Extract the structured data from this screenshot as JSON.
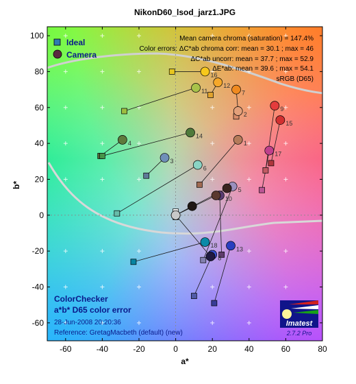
{
  "chart_data": {
    "type": "scatter",
    "title": "NikonD60_lsod_jarz1.JPG",
    "xlabel": "a*",
    "ylabel": "b*",
    "xlim": [
      -70,
      80
    ],
    "ylim": [
      -70,
      105
    ],
    "xticks": [
      -60,
      -40,
      -20,
      0,
      20,
      40,
      60,
      80
    ],
    "yticks": [
      -60,
      -40,
      -20,
      0,
      20,
      40,
      60,
      80,
      100
    ],
    "legend": {
      "position": "top-left",
      "entries": [
        "Ideal",
        "Camera"
      ]
    },
    "info_lines": [
      "Mean camera chroma (saturation) = 147.4%",
      "Color errors:  ΔC*ab chroma corr:  mean = 30.1 ;  max = 46",
      "ΔC*ab uncorr:  mean = 37.7 ;  max = 52.9",
      "ΔE*ab:  mean = 39.6 ;  max = 54.1",
      "sRGB (D65)"
    ],
    "footer": {
      "line1": "ColorChecker",
      "line2": "a*b* D65 color error",
      "date": "28-Jun-2008 20:20:36",
      "reference": "Reference: GretagMacbeth (default) (new)"
    },
    "logo": {
      "text": "Imatest",
      "version": "2.7.2  Pro"
    },
    "series": [
      {
        "name": "Ideal",
        "marker": "square"
      },
      {
        "name": "Camera",
        "marker": "circle"
      }
    ],
    "patches": [
      {
        "id": 1,
        "label": "1",
        "ideal": [
          13,
          17
        ],
        "camera": [
          34,
          42
        ],
        "color": "#b47b5a",
        "ideal_color": "#a06a52"
      },
      {
        "id": 2,
        "label": "2",
        "ideal": [
          33,
          55
        ],
        "camera": [
          34,
          58
        ],
        "color": "#e3a07a",
        "ideal_color": "#d88c6a"
      },
      {
        "id": 3,
        "label": "3",
        "ideal": [
          -16,
          22
        ],
        "camera": [
          -6,
          32
        ],
        "color": "#6f8fb8",
        "ideal_color": "#5e7a98"
      },
      {
        "id": 4,
        "label": "4",
        "ideal": [
          -41,
          33
        ],
        "camera": [
          -29,
          42
        ],
        "color": "#5e7a3c",
        "ideal_color": "#586b3a"
      },
      {
        "id": 5,
        "label": "5",
        "ideal": [
          15,
          -25
        ],
        "camera": [
          31,
          16
        ],
        "color": "#9a8fbd",
        "ideal_color": "#8380af"
      },
      {
        "id": 6,
        "label": "6",
        "ideal": [
          -32,
          1
        ],
        "camera": [
          12,
          28
        ],
        "color": "#8ad4c4",
        "ideal_color": "#67bdaa"
      },
      {
        "id": 7,
        "label": "7",
        "ideal": [
          34,
          58
        ],
        "camera": [
          33,
          70
        ],
        "color": "#f08a20",
        "ideal_color": "#d67e2c"
      },
      {
        "id": 8,
        "label": "8",
        "ideal": [
          10,
          -45
        ],
        "camera": [
          20,
          -22
        ],
        "color": "#3650d0",
        "ideal_color": "#505ba6"
      },
      {
        "id": 9,
        "label": "9",
        "ideal": [
          49,
          25
        ],
        "camera": [
          54,
          61
        ],
        "color": "#e43c3c",
        "ideal_color": "#c15a63"
      },
      {
        "id": 10,
        "label": "10",
        "ideal": [
          25,
          -22
        ],
        "camera": [
          24,
          11
        ],
        "color": "#5a3c72",
        "ideal_color": "#5e3c6c"
      },
      {
        "id": 11,
        "label": "11",
        "ideal": [
          -28,
          58
        ],
        "camera": [
          11,
          71
        ],
        "color": "#a8c24a",
        "ideal_color": "#9dbc40"
      },
      {
        "id": 12,
        "label": "12",
        "ideal": [
          19,
          67
        ],
        "camera": [
          23,
          74
        ],
        "color": "#f5a82a",
        "ideal_color": "#e0a32e"
      },
      {
        "id": 13,
        "label": "13",
        "ideal": [
          21,
          -49
        ],
        "camera": [
          30,
          -17
        ],
        "color": "#2a3ec0",
        "ideal_color": "#383d96"
      },
      {
        "id": 14,
        "label": "14",
        "ideal": [
          -40,
          33
        ],
        "camera": [
          8,
          46
        ],
        "color": "#4f7a3a",
        "ideal_color": "#469449"
      },
      {
        "id": 15,
        "label": "15",
        "ideal": [
          52,
          29
        ],
        "camera": [
          57,
          53
        ],
        "color": "#d23030",
        "ideal_color": "#af363c"
      },
      {
        "id": 16,
        "label": "16",
        "ideal": [
          -2,
          80
        ],
        "camera": [
          16,
          80
        ],
        "color": "#f7c81c",
        "ideal_color": "#e7c71f"
      },
      {
        "id": 17,
        "label": "17",
        "ideal": [
          47,
          14
        ],
        "camera": [
          51,
          36
        ],
        "color": "#c0408c",
        "ideal_color": "#bb5695"
      },
      {
        "id": 18,
        "label": "18",
        "ideal": [
          -23,
          -26
        ],
        "camera": [
          16,
          -15
        ],
        "color": "#0a8aa8",
        "ideal_color": "#0885a1"
      },
      {
        "id": 19,
        "label": "",
        "ideal": [
          0,
          2
        ],
        "camera": [
          0,
          0
        ],
        "color": "#f3f3f2",
        "ideal_color": "#f3f3f2"
      },
      {
        "id": 20,
        "label": "",
        "ideal": [
          0,
          -1
        ],
        "camera": [
          0,
          0
        ],
        "color": "#c8c8c8",
        "ideal_color": "#c8c8c8"
      },
      {
        "id": 21,
        "label": "",
        "ideal": [
          0,
          0
        ],
        "camera": [
          9,
          5
        ],
        "color": "#201814",
        "ideal_color": "#a0a0a0"
      },
      {
        "id": 22,
        "label": "",
        "ideal": [
          0,
          0
        ],
        "camera": [
          28,
          15
        ],
        "color": "#3a2420",
        "ideal_color": "#7a7a7a"
      },
      {
        "id": 23,
        "label": "",
        "ideal": [
          0,
          0
        ],
        "camera": [
          22,
          11
        ],
        "color": "#5a3830",
        "ideal_color": "#555555"
      },
      {
        "id": 24,
        "label": "",
        "ideal": [
          0,
          0
        ],
        "camera": [
          19,
          -23
        ],
        "color": "#201a40",
        "ideal_color": "#343434"
      }
    ]
  }
}
